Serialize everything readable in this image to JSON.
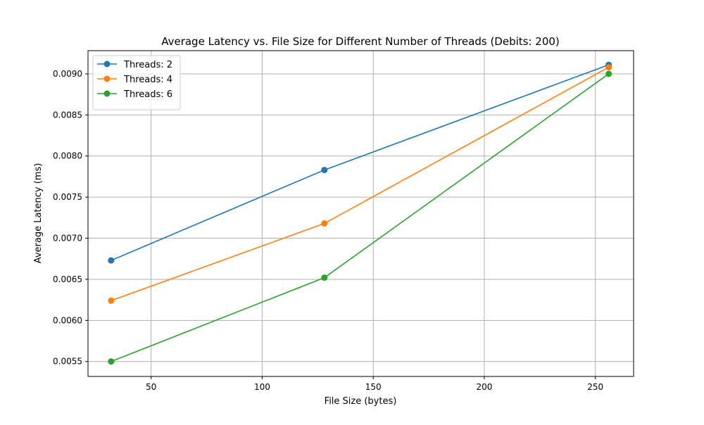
{
  "chart_data": {
    "type": "line",
    "title": "Average Latency vs. File Size for Different Number of Threads (Debits: 200)",
    "xlabel": "File Size (bytes)",
    "ylabel": "Average Latency (ms)",
    "xlim": [
      21.6,
      267.2
    ],
    "ylim": [
      0.005318,
      0.009282
    ],
    "x_ticks": [
      50,
      100,
      150,
      200,
      250
    ],
    "x_tick_labels": [
      "50",
      "100",
      "150",
      "200",
      "250"
    ],
    "y_ticks": [
      0.0055,
      0.006,
      0.0065,
      0.007,
      0.0075,
      0.008,
      0.0085,
      0.009
    ],
    "y_tick_labels": [
      "0.0055",
      "0.0060",
      "0.0065",
      "0.0070",
      "0.0075",
      "0.0080",
      "0.0085",
      "0.0090"
    ],
    "grid": true,
    "legend_position": "top-left",
    "x": [
      32,
      128,
      256
    ],
    "series": [
      {
        "name": "Threads: 2",
        "color": "#1f77b4",
        "values": [
          0.00673,
          0.00783,
          0.00911
        ]
      },
      {
        "name": "Threads: 4",
        "color": "#ff7f0e",
        "values": [
          0.00624,
          0.00718,
          0.00908
        ]
      },
      {
        "name": "Threads: 6",
        "color": "#2ca02c",
        "values": [
          0.0055,
          0.00652,
          0.009
        ]
      }
    ]
  }
}
